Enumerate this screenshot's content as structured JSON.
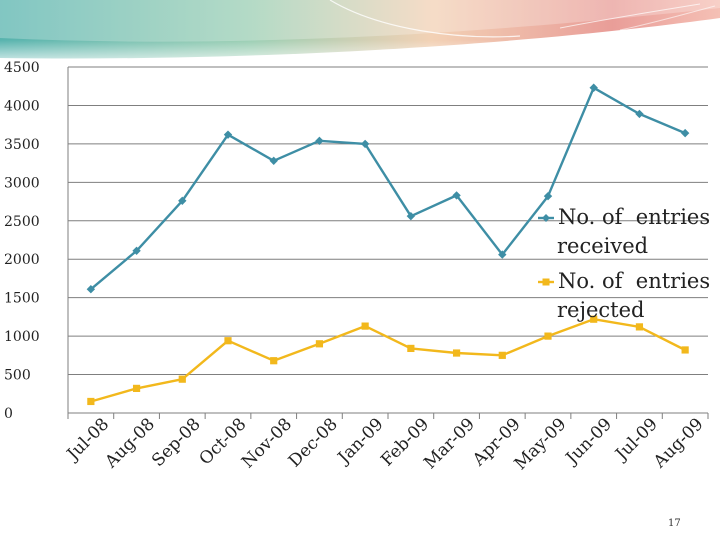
{
  "chart_data": {
    "type": "line",
    "title": "",
    "xlabel": "",
    "ylabel": "",
    "ylim": [
      0,
      4500
    ],
    "yticks": [
      0,
      500,
      1000,
      1500,
      2000,
      2500,
      3000,
      3500,
      4000,
      4500
    ],
    "categories": [
      "Jul-08",
      "Aug-08",
      "Sep-08",
      "Oct-08",
      "Nov-08",
      "Dec-08",
      "Jan-09",
      "Feb-09",
      "Mar-09",
      "Apr-09",
      "May-09",
      "Jun-09",
      "Jul-09",
      "Aug-09"
    ],
    "series": [
      {
        "name": "No. of  entries received",
        "legend_lines": [
          "No. of  entries",
          "received"
        ],
        "color": "#3e8ea5",
        "marker": "diamond",
        "values": [
          1610,
          2110,
          2760,
          3620,
          3280,
          3540,
          3500,
          2560,
          2830,
          2060,
          2820,
          4230,
          3890,
          3640
        ]
      },
      {
        "name": "No. of  entries rejected",
        "legend_lines": [
          "No. of  entries",
          "rejected"
        ],
        "color": "#f2b81c",
        "marker": "square",
        "values": [
          150,
          320,
          440,
          940,
          680,
          900,
          1130,
          840,
          780,
          750,
          1000,
          1220,
          1120,
          820
        ]
      }
    ],
    "legend_position": "right"
  },
  "footer": {
    "page_number": "17"
  }
}
